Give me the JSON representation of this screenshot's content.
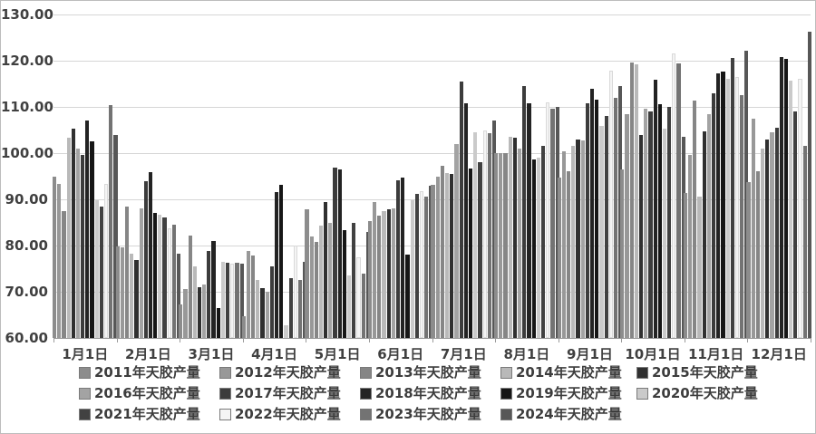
{
  "chart_data": {
    "type": "bar",
    "title": "",
    "xlabel": "",
    "ylabel": "",
    "ylim": [
      60,
      130
    ],
    "grid": true,
    "legend_position": "bottom",
    "y_tick_labels": [
      "130.00",
      "120.00",
      "110.00",
      "100.00",
      "90.00",
      "80.00",
      "70.00",
      "60.00"
    ],
    "categories": [
      "1月1日",
      "2月1日",
      "3月1日",
      "4月1日",
      "5月1日",
      "6月1日",
      "7月1日",
      "8月1日",
      "9月1日",
      "10月1日",
      "11月1日",
      "12月1日"
    ],
    "series": [
      {
        "name": "2011年天胶产量",
        "color": "#8c8c8c",
        "values": [
          95.0,
          79.9,
          67.3,
          64.8,
          87.9,
          85.2,
          93.1,
          100.0,
          94.7,
          96.5,
          91.4,
          93.7
        ]
      },
      {
        "name": "2012年天胶产量",
        "color": "#989898",
        "values": [
          93.3,
          79.7,
          70.5,
          78.8,
          82.0,
          89.5,
          95.0,
          100.0,
          100.3,
          108.4,
          99.6,
          107.5
        ]
      },
      {
        "name": "2013年天胶产量",
        "color": "#868686",
        "values": [
          87.5,
          88.4,
          82.1,
          77.8,
          80.7,
          86.5,
          97.3,
          100.0,
          96.0,
          119.6,
          111.4,
          96.0
        ]
      },
      {
        "name": "2014年天胶产量",
        "color": "#b9b9b9",
        "values": [
          103.4,
          78.2,
          75.5,
          72.5,
          84.3,
          87.5,
          95.7,
          103.5,
          101.6,
          119.3,
          90.5,
          100.9
        ]
      },
      {
        "name": "2015年天胶产量",
        "color": "#303030",
        "values": [
          105.3,
          76.8,
          70.9,
          70.7,
          89.5,
          87.8,
          95.5,
          103.4,
          102.9,
          103.9,
          104.8,
          102.9
        ]
      },
      {
        "name": "2016年天胶产量",
        "color": "#a3a3a3",
        "values": [
          101.0,
          88.0,
          71.6,
          70.0,
          85.0,
          88.0,
          101.9,
          101.0,
          102.8,
          109.7,
          108.4,
          104.5
        ]
      },
      {
        "name": "2017年天胶产量",
        "color": "#3c3c3c",
        "values": [
          99.6,
          93.9,
          78.8,
          75.5,
          96.8,
          94.1,
          115.5,
          114.5,
          110.7,
          109.0,
          113.0,
          105.5
        ]
      },
      {
        "name": "2018年天胶产量",
        "color": "#232323",
        "values": [
          107.0,
          95.9,
          81.0,
          91.6,
          96.5,
          94.7,
          110.7,
          110.7,
          114.0,
          115.9,
          117.3,
          120.8
        ]
      },
      {
        "name": "2019年天胶产量",
        "color": "#161616",
        "values": [
          102.6,
          87.1,
          66.4,
          93.2,
          83.3,
          78.0,
          96.7,
          98.6,
          111.5,
          110.5,
          117.6,
          120.3
        ]
      },
      {
        "name": "2020年天胶产量",
        "color": "#cacaca",
        "values": [
          89.8,
          86.7,
          76.5,
          62.8,
          73.5,
          89.8,
          104.5,
          99.0,
          105.8,
          105.2,
          116.0,
          115.6
        ]
      },
      {
        "name": "2021年天胶产量",
        "color": "#414141",
        "values": [
          88.5,
          86.1,
          76.3,
          72.9,
          84.9,
          91.1,
          98.0,
          101.6,
          108.0,
          110.1,
          120.5,
          109.1
        ]
      },
      {
        "name": "2022年天胶产量",
        "color": "#f4f4f4",
        "values": [
          93.3,
          83.8,
          76.0,
          80.1,
          77.4,
          91.8,
          105.0,
          111.0,
          117.8,
          121.5,
          116.5,
          116.0
        ]
      },
      {
        "name": "2023年天胶产量",
        "color": "#737373",
        "values": [
          110.4,
          84.5,
          76.3,
          72.6,
          74.0,
          90.5,
          104.4,
          109.7,
          112.0,
          119.4,
          112.5,
          101.5
        ]
      },
      {
        "name": "2024年天胶产量",
        "color": "#575757",
        "values": [
          104.0,
          78.2,
          76.1,
          76.5,
          83.0,
          93.0,
          107.1,
          110.0,
          114.5,
          103.5,
          122.2,
          126.3
        ]
      }
    ]
  }
}
